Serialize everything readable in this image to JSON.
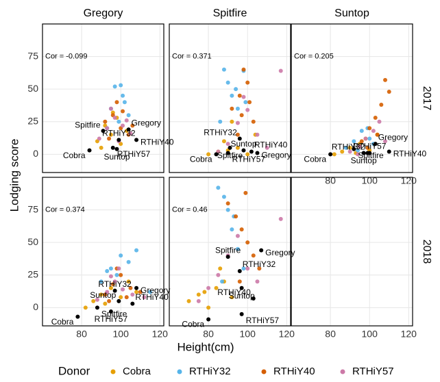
{
  "chart_data": {
    "type": "scatter",
    "xlabel": "Height(cm)",
    "ylabel": "Lodging score",
    "legend_title": "Donor",
    "columns": [
      "Gregory",
      "Spitfire",
      "Suntop"
    ],
    "rows": [
      "2017",
      "2018"
    ],
    "xlim": [
      60,
      122
    ],
    "ylim": [
      -14,
      100
    ],
    "xticks": [
      80,
      100,
      120
    ],
    "yticks": [
      0,
      25,
      50,
      75
    ],
    "grid": true,
    "series": [
      {
        "name": "Cobra",
        "color": "#E69F00"
      },
      {
        "name": "RTHiY32",
        "color": "#56B4E9"
      },
      {
        "name": "RTHiY40",
        "color": "#D55E00"
      },
      {
        "name": "RTHiY57",
        "color": "#CC79A7"
      }
    ],
    "label_color": "#000000",
    "panels": [
      [
        {
          "annotation": "Cor = -0.099",
          "series": [
            {
              "x": [
                88,
                92,
                95,
                98,
                100,
                103,
                90,
                96
              ],
              "values": [
                10,
                22,
                15,
                28,
                8,
                18,
                5,
                32
              ]
            },
            {
              "x": [
                97,
                100,
                102,
                95,
                99,
                104,
                93,
                101
              ],
              "values": [
                52,
                53,
                40,
                35,
                25,
                30,
                20,
                45
              ]
            },
            {
              "x": [
                92,
                96,
                100,
                104,
                98,
                94,
                106,
                101
              ],
              "values": [
                25,
                30,
                20,
                15,
                40,
                12,
                22,
                33
              ]
            },
            {
              "x": [
                89,
                93,
                97,
                101,
                105,
                95,
                99,
                103
              ],
              "values": [
                12,
                20,
                28,
                22,
                16,
                35,
                10,
                26
              ]
            }
          ],
          "labels": {
            "names": [
              "Cobra",
              "RTHiY57",
              "Suntop",
              "Spitfire",
              "RTHiY32",
              "Gregory",
              "RTHiY40"
            ],
            "x": [
              84,
              96,
              98,
              91,
              99,
              104,
              108
            ],
            "values": [
              3,
              5,
              4,
              18,
              11,
              19,
              11
            ]
          }
        },
        {
          "annotation": "Cor = 0.371",
          "series": [
            {
              "x": [
                80,
                85,
                88,
                92,
                95,
                100,
                104,
                90
              ],
              "values": [
                0,
                2,
                10,
                25,
                5,
                0,
                15,
                3
              ]
            },
            {
              "x": [
                88,
                90,
                92,
                95,
                98,
                86,
                94,
                99
              ],
              "values": [
                65,
                55,
                45,
                35,
                64,
                25,
                50,
                40
              ]
            },
            {
              "x": [
                92,
                96,
                98,
                100,
                103,
                95,
                101,
                97
              ],
              "values": [
                35,
                45,
                65,
                55,
                25,
                15,
                40,
                30
              ]
            },
            {
              "x": [
                85,
                90,
                95,
                100,
                105,
                110,
                117,
                98
              ],
              "values": [
                2,
                8,
                24,
                34,
                15,
                5,
                64,
                44
              ]
            }
          ],
          "labels": {
            "names": [
              "Cobra",
              "RTHiY57",
              "Spitfire",
              "RTHiY32",
              "Suntop",
              "RTHiY40",
              "Gregory"
            ],
            "x": [
              84,
              90,
              91,
              96,
              98,
              102,
              105
            ],
            "values": [
              0,
              1,
              5,
              12,
              3,
              2,
              1
            ]
          }
        },
        {
          "annotation": "Cor = 0.205",
          "series": [
            {
              "x": [
                82,
                86,
                90,
                95,
                100,
                104,
                93,
                98
              ],
              "values": [
                0,
                2,
                5,
                8,
                3,
                15,
                1,
                12
              ]
            },
            {
              "x": [
                88,
                92,
                96,
                100,
                94,
                99,
                102,
                97
              ],
              "values": [
                5,
                10,
                18,
                12,
                3,
                20,
                8,
                1
              ]
            },
            {
              "x": [
                96,
                100,
                103,
                106,
                108,
                110,
                104,
                99
              ],
              "values": [
                10,
                20,
                28,
                38,
                57,
                48,
                15,
                5
              ]
            },
            {
              "x": [
                90,
                95,
                98,
                102,
                105,
                108,
                100,
                94
              ],
              "values": [
                2,
                6,
                12,
                18,
                25,
                10,
                1,
                0
              ]
            }
          ],
          "labels": {
            "names": [
              "Cobra",
              "Spitfire",
              "Suntop",
              "RTHiY32",
              "RTHiY57",
              "Gregory",
              "RTHiY40"
            ],
            "x": [
              80,
              92,
              97,
              99,
              100,
              103,
              110
            ],
            "values": [
              0,
              4,
              1,
              1,
              1,
              8,
              2
            ]
          }
        }
      ],
      [
        {
          "annotation": "Cor = 0.374",
          "series": [
            {
              "x": [
                82,
                86,
                90,
                95,
                100,
                104,
                108,
                92
              ],
              "values": [
                0,
                5,
                10,
                15,
                8,
                20,
                12,
                3
              ]
            },
            {
              "x": [
                90,
                95,
                100,
                104,
                108,
                98,
                115,
                93
              ],
              "values": [
                20,
                30,
                40,
                35,
                44,
                25,
                12,
                28
              ]
            },
            {
              "x": [
                92,
                96,
                100,
                105,
                110,
                98,
                103,
                94
              ],
              "values": [
                10,
                18,
                25,
                15,
                12,
                30,
                8,
                5
              ]
            },
            {
              "x": [
                88,
                93,
                97,
                101,
                106,
                112,
                99,
                95
              ],
              "values": [
                6,
                12,
                20,
                14,
                10,
                8,
                30,
                24
              ]
            }
          ],
          "labels": {
            "names": [
              "Cobra",
              "Spitfire",
              "RTHiY57",
              "Suntop",
              "RTHiY32",
              "RTHiY40",
              "Gregory"
            ],
            "x": [
              78,
              88,
              95,
              99,
              97,
              106,
              108
            ],
            "values": [
              -7,
              0,
              -3,
              5,
              13,
              3,
              15
            ]
          }
        },
        {
          "annotation": "Cor = 0.46",
          "series": [
            {
              "x": [
                70,
                75,
                80,
                84,
                88,
                92,
                86,
                78
              ],
              "values": [
                5,
                10,
                0,
                15,
                20,
                8,
                30,
                12
              ]
            },
            {
              "x": [
                85,
                88,
                90,
                92,
                95,
                98,
                87,
                93
              ],
              "values": [
                92,
                85,
                75,
                60,
                45,
                30,
                20,
                70
              ]
            },
            {
              "x": [
                90,
                94,
                97,
                100,
                103,
                106,
                96,
                99
              ],
              "values": [
                80,
                70,
                60,
                50,
                40,
                30,
                20,
                88
              ]
            },
            {
              "x": [
                75,
                80,
                85,
                90,
                95,
                100,
                105,
                117
              ],
              "values": [
                5,
                15,
                25,
                40,
                55,
                30,
                20,
                68
              ]
            }
          ],
          "labels": {
            "names": [
              "Cobra",
              "RTHiY57",
              "Suntop",
              "RTHiY40",
              "Spitfire",
              "RTHiY32",
              "Gregory"
            ],
            "x": [
              80,
              97,
              97,
              103,
              90,
              96,
              107
            ],
            "values": [
              -9,
              -5,
              15,
              7,
              39,
              28,
              44
            ]
          }
        },
        null
      ]
    ]
  }
}
